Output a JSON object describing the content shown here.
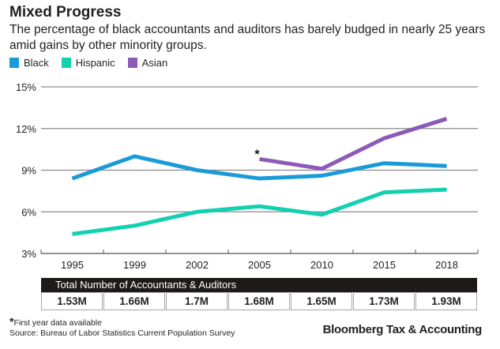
{
  "header": {
    "title": "Mixed Progress",
    "subtitle": "The percentage of black accountants and auditors has barely budged in nearly 25 years amid gains by other minority groups."
  },
  "chart_data": {
    "type": "line",
    "title": "Mixed Progress",
    "subtitle": "The percentage of black accountants and auditors has barely budged in nearly 25 years amid gains by other minority groups.",
    "xlabel": "",
    "ylabel": "",
    "categories": [
      "1995",
      "1999",
      "2002",
      "2005",
      "2010",
      "2015",
      "2018"
    ],
    "ylim": [
      3,
      15
    ],
    "yticks": [
      3,
      6,
      9,
      12,
      15
    ],
    "ytick_labels": [
      "3%",
      "6%",
      "9%",
      "12%",
      "15%"
    ],
    "grid": true,
    "legend_position": "top-left",
    "series": [
      {
        "name": "Black",
        "color": "#1a9bd7",
        "values": [
          8.4,
          10.0,
          9.0,
          8.4,
          8.6,
          9.5,
          9.3
        ]
      },
      {
        "name": "Hispanic",
        "color": "#13d1b0",
        "values": [
          4.4,
          5.0,
          6.0,
          6.4,
          5.8,
          7.4,
          7.6
        ]
      },
      {
        "name": "Asian",
        "color": "#8e5ab8",
        "values": [
          null,
          null,
          null,
          9.8,
          9.1,
          11.3,
          12.7
        ]
      }
    ],
    "annotations": [
      {
        "text": "*",
        "series": "Asian",
        "category": "2005",
        "note": "First year data available"
      }
    ],
    "table": {
      "header": "Total Number of Accountants & Auditors",
      "values": [
        "1.53M",
        "1.66M",
        "1.7M",
        "1.68M",
        "1.65M",
        "1.73M",
        "1.93M"
      ]
    }
  },
  "footer": {
    "footnote_star": "*",
    "footnote_text": "First year data available",
    "source": "Source: Bureau of Labor Statistics Current Population Survey",
    "brand": "Bloomberg Tax & Accounting"
  }
}
